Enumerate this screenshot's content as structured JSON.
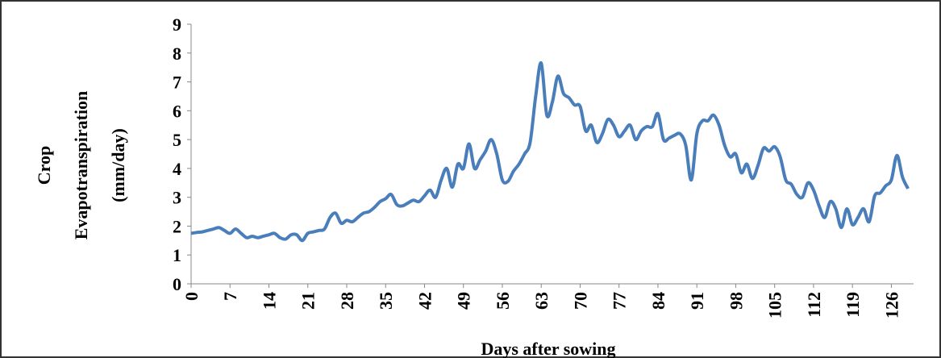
{
  "chart_data": {
    "type": "line",
    "ylabel": [
      "Crop",
      "Evapotranspiration",
      "(mm/day)"
    ],
    "xlabel": "Days after sowing",
    "x": [
      0,
      1,
      2,
      3,
      4,
      5,
      6,
      7,
      8,
      9,
      10,
      11,
      12,
      13,
      14,
      15,
      16,
      17,
      18,
      19,
      20,
      21,
      22,
      23,
      24,
      25,
      26,
      27,
      28,
      29,
      30,
      31,
      32,
      33,
      34,
      35,
      36,
      37,
      38,
      39,
      40,
      41,
      42,
      43,
      44,
      45,
      46,
      47,
      48,
      49,
      50,
      51,
      52,
      53,
      54,
      55,
      56,
      57,
      58,
      59,
      60,
      61,
      62,
      63,
      64,
      65,
      66,
      67,
      68,
      69,
      70,
      71,
      72,
      73,
      74,
      75,
      76,
      77,
      78,
      79,
      80,
      81,
      82,
      83,
      84,
      85,
      86,
      87,
      88,
      89,
      90,
      91,
      92,
      93,
      94,
      95,
      96,
      97,
      98,
      99,
      100,
      101,
      102,
      103,
      104,
      105,
      106,
      107,
      108,
      109,
      110,
      111,
      112,
      113,
      114,
      115,
      116,
      117,
      118,
      119,
      120,
      121,
      122,
      123,
      124,
      125,
      126,
      127,
      128,
      129
    ],
    "series": [
      {
        "name": "Crop Evapotranspiration",
        "color": "#4a7ebb",
        "values": [
          1.75,
          1.78,
          1.8,
          1.85,
          1.9,
          1.95,
          1.85,
          1.75,
          1.9,
          1.75,
          1.6,
          1.65,
          1.6,
          1.65,
          1.7,
          1.75,
          1.6,
          1.55,
          1.7,
          1.7,
          1.5,
          1.75,
          1.8,
          1.85,
          1.9,
          2.3,
          2.45,
          2.1,
          2.2,
          2.15,
          2.3,
          2.45,
          2.5,
          2.65,
          2.85,
          2.95,
          3.1,
          2.75,
          2.7,
          2.8,
          2.9,
          2.85,
          3.05,
          3.25,
          3.0,
          3.6,
          4.0,
          3.35,
          4.15,
          4.0,
          4.85,
          4.0,
          4.3,
          4.6,
          5.0,
          4.5,
          3.6,
          3.55,
          3.9,
          4.15,
          4.5,
          4.9,
          6.5,
          7.65,
          5.85,
          6.3,
          7.2,
          6.6,
          6.45,
          6.2,
          6.15,
          5.3,
          5.5,
          4.9,
          5.2,
          5.7,
          5.5,
          5.1,
          5.3,
          5.5,
          5.0,
          5.3,
          5.45,
          5.45,
          5.9,
          5.0,
          5.05,
          5.15,
          5.2,
          4.8,
          3.6,
          5.2,
          5.65,
          5.65,
          5.85,
          5.5,
          4.8,
          4.4,
          4.5,
          3.85,
          4.15,
          3.65,
          4.1,
          4.7,
          4.6,
          4.75,
          4.4,
          3.6,
          3.45,
          3.1,
          3.0,
          3.5,
          3.25,
          2.7,
          2.3,
          2.85,
          2.6,
          1.95,
          2.6,
          2.05,
          2.3,
          2.6,
          2.15,
          3.05,
          3.15,
          3.4,
          3.6,
          4.45,
          3.7,
          3.3
        ]
      }
    ],
    "xlim": [
      0,
      130
    ],
    "xticks": [
      0,
      7,
      14,
      21,
      28,
      35,
      42,
      49,
      56,
      63,
      70,
      77,
      84,
      91,
      98,
      105,
      112,
      119,
      126
    ],
    "ylim": [
      0,
      9
    ],
    "yticks": [
      0,
      1,
      2,
      3,
      4,
      5,
      6,
      7,
      8,
      9
    ]
  }
}
